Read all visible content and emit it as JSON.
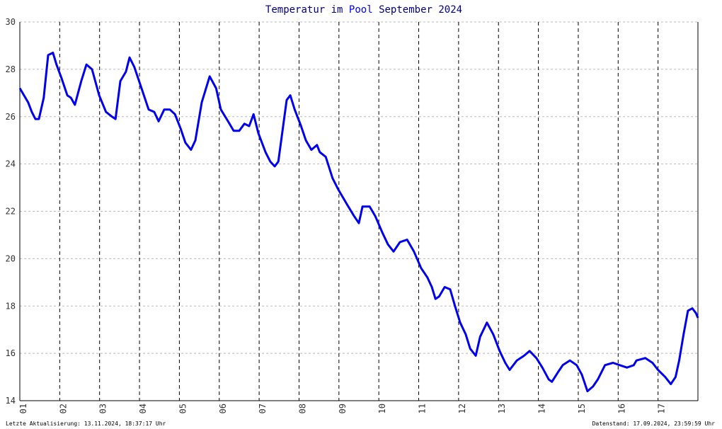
{
  "chart_data": {
    "type": "line",
    "title": [
      "Temperatur im",
      "Pool",
      "September 2024"
    ],
    "title_colors": [
      "#000080",
      "#0000ff",
      "#000080"
    ],
    "footer_left": "Letzte Aktualisierung: 13.11.2024, 18:37:17 Uhr",
    "footer_right": "Datenstand: 17.09.2024, 23:59:59 Uhr",
    "xlim": [
      1,
      18
    ],
    "xticks": [
      {
        "value": 1,
        "label": "01"
      },
      {
        "value": 2,
        "label": "02"
      },
      {
        "value": 3,
        "label": "03"
      },
      {
        "value": 4,
        "label": "04"
      },
      {
        "value": 5,
        "label": "05"
      },
      {
        "value": 6,
        "label": "06"
      },
      {
        "value": 7,
        "label": "07"
      },
      {
        "value": 8,
        "label": "08"
      },
      {
        "value": 9,
        "label": "09"
      },
      {
        "value": 10,
        "label": "10"
      },
      {
        "value": 11,
        "label": "11"
      },
      {
        "value": 12,
        "label": "12"
      },
      {
        "value": 13,
        "label": "13"
      },
      {
        "value": 14,
        "label": "14"
      },
      {
        "value": 15,
        "label": "15"
      },
      {
        "value": 16,
        "label": "16"
      },
      {
        "value": 17,
        "label": "17"
      }
    ],
    "ylim": [
      14,
      30
    ],
    "yticks": [
      14,
      16,
      18,
      20,
      22,
      24,
      26,
      28,
      30
    ],
    "grid": true,
    "series": [
      {
        "color": "#0000ee",
        "x": [
          1.0,
          1.21,
          1.3,
          1.39,
          1.48,
          1.6,
          1.71,
          1.83,
          1.92,
          2.05,
          2.19,
          2.28,
          2.38,
          2.54,
          2.67,
          2.81,
          2.99,
          3.16,
          3.31,
          3.4,
          3.52,
          3.66,
          3.75,
          3.87,
          4.05,
          4.23,
          4.37,
          4.48,
          4.62,
          4.76,
          4.89,
          5.03,
          5.15,
          5.29,
          5.4,
          5.56,
          5.76,
          5.92,
          6.04,
          6.22,
          6.36,
          6.5,
          6.63,
          6.75,
          6.86,
          6.98,
          7.16,
          7.28,
          7.39,
          7.48,
          7.57,
          7.69,
          7.78,
          7.89,
          8.05,
          8.17,
          8.31,
          8.45,
          8.52,
          8.67,
          8.84,
          8.99,
          9.2,
          9.38,
          9.5,
          9.59,
          9.77,
          9.91,
          10.09,
          10.23,
          10.37,
          10.53,
          10.71,
          10.88,
          11.06,
          11.22,
          11.33,
          11.42,
          11.51,
          11.65,
          11.79,
          11.91,
          12.04,
          12.18,
          12.29,
          12.43,
          12.54,
          12.71,
          12.87,
          13.03,
          13.17,
          13.28,
          13.46,
          13.64,
          13.78,
          13.95,
          14.1,
          14.26,
          14.34,
          14.49,
          14.61,
          14.79,
          14.96,
          15.09,
          15.23,
          15.37,
          15.49,
          15.67,
          15.87,
          16.04,
          16.22,
          16.39,
          16.46,
          16.68,
          16.86,
          17.0,
          17.18,
          17.32,
          17.44,
          17.53,
          17.64,
          17.75,
          17.86,
          17.95,
          18.0
        ],
        "values": [
          27.2,
          26.6,
          26.2,
          25.9,
          25.9,
          26.8,
          28.6,
          28.7,
          28.2,
          27.6,
          26.9,
          26.8,
          26.5,
          27.5,
          28.2,
          28.0,
          26.9,
          26.2,
          26.0,
          25.9,
          27.5,
          27.9,
          28.5,
          28.1,
          27.2,
          26.3,
          26.2,
          25.8,
          26.3,
          26.3,
          26.1,
          25.5,
          24.9,
          24.6,
          25.0,
          26.6,
          27.7,
          27.2,
          26.3,
          25.8,
          25.4,
          25.4,
          25.7,
          25.6,
          26.1,
          25.3,
          24.5,
          24.1,
          23.9,
          24.1,
          25.2,
          26.7,
          26.9,
          26.3,
          25.6,
          25.0,
          24.6,
          24.8,
          24.5,
          24.3,
          23.4,
          22.9,
          22.3,
          21.8,
          21.5,
          22.2,
          22.2,
          21.8,
          21.1,
          20.6,
          20.3,
          20.7,
          20.8,
          20.3,
          19.6,
          19.2,
          18.8,
          18.3,
          18.4,
          18.8,
          18.7,
          18.0,
          17.3,
          16.8,
          16.2,
          15.9,
          16.7,
          17.3,
          16.8,
          16.1,
          15.6,
          15.3,
          15.7,
          15.9,
          16.1,
          15.8,
          15.4,
          14.9,
          14.8,
          15.2,
          15.5,
          15.7,
          15.5,
          15.1,
          14.4,
          14.6,
          14.9,
          15.5,
          15.6,
          15.5,
          15.4,
          15.5,
          15.7,
          15.8,
          15.6,
          15.3,
          15.0,
          14.7,
          15.0,
          15.7,
          16.8,
          17.8,
          17.9,
          17.7,
          17.5
        ]
      }
    ]
  }
}
